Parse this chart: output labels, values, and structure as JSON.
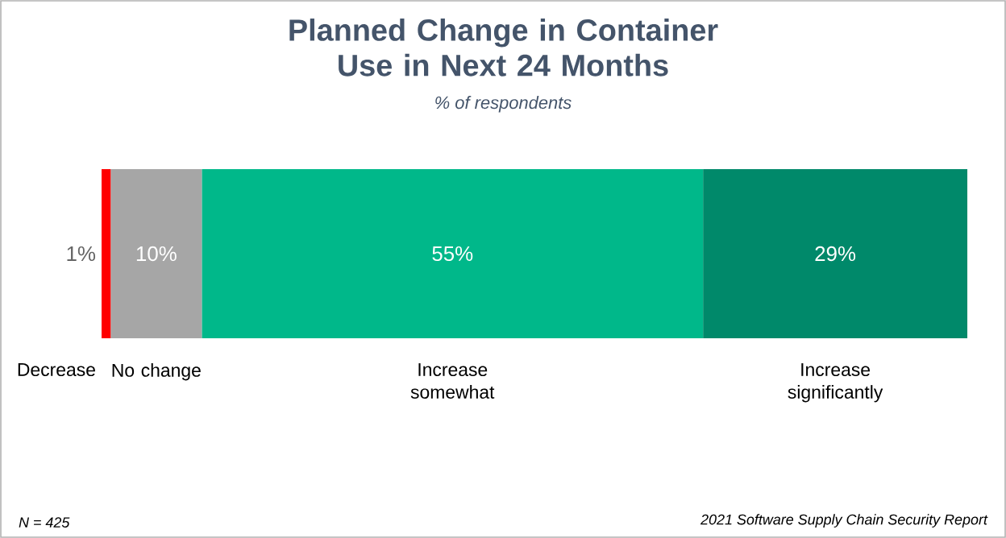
{
  "chart_data": {
    "type": "bar",
    "orientation": "horizontal",
    "stacked": true,
    "title": "Planned Change in Container Use in Next 24 Months",
    "subtitle": "% of respondents",
    "categories": [
      null
    ],
    "series": [
      {
        "name": "Decrease",
        "color": "#ff0000",
        "values": [
          1
        ],
        "value_labels": [
          "1%"
        ]
      },
      {
        "name": "No change",
        "color": "#a6a6a6",
        "values": [
          10
        ],
        "value_labels": [
          "10%"
        ]
      },
      {
        "name": "Increase somewhat",
        "color": "#00b88a",
        "values": [
          55
        ],
        "value_labels": [
          "55%"
        ]
      },
      {
        "name": "Increase significantly",
        "color": "#00896a",
        "values": [
          29
        ],
        "value_labels": [
          "29%"
        ]
      }
    ],
    "annotations": [
      "N = 425",
      "2021 Software Supply Chain Security Report"
    ]
  }
}
